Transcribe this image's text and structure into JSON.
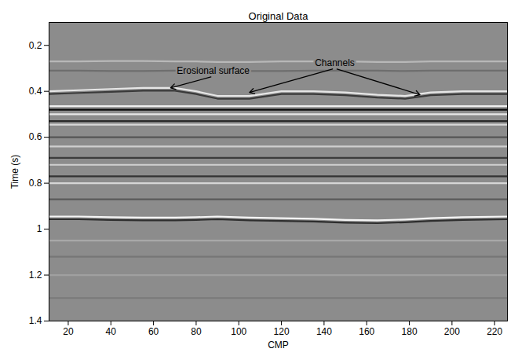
{
  "chart_data": {
    "type": "line",
    "title": "Original Data",
    "x_label": "CMP",
    "y_label": "Time (s)",
    "xlim": [
      11,
      226
    ],
    "ylim": [
      1.4,
      0.1
    ],
    "xticks": [
      20,
      40,
      60,
      80,
      100,
      120,
      140,
      160,
      180,
      200,
      220
    ],
    "yticks": [
      0.2,
      0.4,
      0.6,
      0.8,
      1,
      1.2,
      1.4
    ],
    "grid": false,
    "x": [
      11,
      25,
      40,
      55,
      70,
      80,
      90,
      105,
      120,
      135,
      150,
      165,
      178,
      190,
      205,
      226
    ],
    "series": [
      {
        "color": "#b8b8b8",
        "values": [
          0.27,
          0.27,
          0.268,
          0.268,
          0.27,
          0.27,
          0.272,
          0.272,
          0.27,
          0.27,
          0.27,
          0.272,
          0.272,
          0.27,
          0.27,
          0.27
        ]
      },
      {
        "color": "#6e6e6e",
        "values": [
          0.31,
          0.31,
          0.312,
          0.312,
          0.31,
          0.31,
          0.31,
          0.312,
          0.312,
          0.31,
          0.31,
          0.31,
          0.312,
          0.31,
          0.31,
          0.31
        ]
      },
      {
        "color": "#e6e6e6",
        "values": [
          0.4,
          0.395,
          0.39,
          0.385,
          0.385,
          0.4,
          0.42,
          0.42,
          0.4,
          0.4,
          0.405,
          0.415,
          0.42,
          0.405,
          0.4,
          0.4
        ]
      },
      {
        "color": "#3a3a3a",
        "values": [
          0.412,
          0.407,
          0.402,
          0.397,
          0.397,
          0.412,
          0.432,
          0.432,
          0.412,
          0.412,
          0.417,
          0.427,
          0.432,
          0.417,
          0.412,
          0.412
        ]
      },
      {
        "color": "#f0f0f0",
        "values": [
          0.465,
          0.465,
          0.465,
          0.465,
          0.465,
          0.465,
          0.465,
          0.465,
          0.465,
          0.465,
          0.465,
          0.465,
          0.465,
          0.465,
          0.465,
          0.465
        ]
      },
      {
        "color": "#0a0a0a",
        "values": [
          0.48,
          0.48,
          0.48,
          0.48,
          0.48,
          0.48,
          0.48,
          0.48,
          0.48,
          0.48,
          0.48,
          0.48,
          0.48,
          0.48,
          0.48,
          0.48
        ]
      },
      {
        "color": "#e8e8e8",
        "values": [
          0.5,
          0.5,
          0.5,
          0.5,
          0.5,
          0.5,
          0.5,
          0.5,
          0.5,
          0.5,
          0.5,
          0.5,
          0.5,
          0.5,
          0.5,
          0.5
        ]
      },
      {
        "color": "#2a2a2a",
        "values": [
          0.53,
          0.53,
          0.53,
          0.53,
          0.53,
          0.53,
          0.53,
          0.53,
          0.53,
          0.53,
          0.53,
          0.53,
          0.53,
          0.53,
          0.53,
          0.53
        ]
      },
      {
        "color": "#d8d8d8",
        "values": [
          0.545,
          0.545,
          0.545,
          0.545,
          0.545,
          0.545,
          0.545,
          0.545,
          0.545,
          0.545,
          0.545,
          0.545,
          0.545,
          0.545,
          0.545,
          0.545
        ]
      },
      {
        "color": "#555555",
        "values": [
          0.6,
          0.6,
          0.6,
          0.6,
          0.6,
          0.6,
          0.6,
          0.6,
          0.6,
          0.6,
          0.6,
          0.6,
          0.6,
          0.6,
          0.6,
          0.6
        ]
      },
      {
        "color": "#cfcfcf",
        "values": [
          0.64,
          0.64,
          0.64,
          0.64,
          0.64,
          0.64,
          0.64,
          0.64,
          0.64,
          0.64,
          0.64,
          0.64,
          0.64,
          0.64,
          0.64,
          0.64
        ]
      },
      {
        "color": "#3c3c3c",
        "values": [
          0.69,
          0.69,
          0.69,
          0.69,
          0.69,
          0.69,
          0.69,
          0.69,
          0.69,
          0.69,
          0.69,
          0.69,
          0.69,
          0.69,
          0.69,
          0.69
        ]
      },
      {
        "color": "#d0d0d0",
        "values": [
          0.72,
          0.72,
          0.72,
          0.72,
          0.72,
          0.72,
          0.72,
          0.72,
          0.72,
          0.72,
          0.72,
          0.72,
          0.72,
          0.72,
          0.72,
          0.72
        ]
      },
      {
        "color": "#333333",
        "values": [
          0.77,
          0.77,
          0.77,
          0.77,
          0.77,
          0.77,
          0.77,
          0.77,
          0.77,
          0.77,
          0.77,
          0.77,
          0.77,
          0.77,
          0.77,
          0.77
        ]
      },
      {
        "color": "#d6d6d6",
        "values": [
          0.8,
          0.8,
          0.8,
          0.8,
          0.8,
          0.8,
          0.8,
          0.8,
          0.8,
          0.8,
          0.8,
          0.8,
          0.8,
          0.8,
          0.8,
          0.8
        ]
      },
      {
        "color": "#5a5a5a",
        "values": [
          0.87,
          0.87,
          0.87,
          0.87,
          0.87,
          0.87,
          0.87,
          0.87,
          0.87,
          0.87,
          0.87,
          0.87,
          0.87,
          0.87,
          0.87,
          0.87
        ]
      },
      {
        "color": "#f5f5f5",
        "values": [
          0.945,
          0.945,
          0.948,
          0.95,
          0.95,
          0.948,
          0.945,
          0.95,
          0.952,
          0.955,
          0.96,
          0.962,
          0.958,
          0.952,
          0.948,
          0.945
        ]
      },
      {
        "color": "#2e2e2e",
        "values": [
          0.957,
          0.957,
          0.96,
          0.962,
          0.962,
          0.96,
          0.957,
          0.962,
          0.964,
          0.967,
          0.972,
          0.974,
          0.97,
          0.964,
          0.96,
          0.957
        ]
      },
      {
        "color": "#a8a8a8",
        "values": [
          1.05,
          1.05,
          1.05,
          1.05,
          1.05,
          1.05,
          1.05,
          1.05,
          1.05,
          1.05,
          1.05,
          1.05,
          1.05,
          1.05,
          1.05,
          1.05
        ]
      },
      {
        "color": "#777777",
        "values": [
          1.12,
          1.12,
          1.12,
          1.12,
          1.12,
          1.12,
          1.12,
          1.12,
          1.12,
          1.12,
          1.12,
          1.12,
          1.12,
          1.12,
          1.12,
          1.12
        ]
      },
      {
        "color": "#a0a0a0",
        "values": [
          1.2,
          1.2,
          1.2,
          1.2,
          1.2,
          1.2,
          1.2,
          1.2,
          1.2,
          1.2,
          1.2,
          1.2,
          1.2,
          1.2,
          1.2,
          1.2
        ]
      },
      {
        "color": "#7a7a7a",
        "values": [
          1.3,
          1.3,
          1.3,
          1.3,
          1.3,
          1.3,
          1.3,
          1.3,
          1.3,
          1.3,
          1.3,
          1.3,
          1.3,
          1.3,
          1.3,
          1.3
        ]
      }
    ],
    "annotations": [
      {
        "text": "Erosional surface",
        "x": 88,
        "y": 0.335,
        "arrows": [
          {
            "x": 68,
            "y": 0.385
          }
        ]
      },
      {
        "text": "Channels",
        "x": 145,
        "y": 0.3,
        "arrows": [
          {
            "x": 105,
            "y": 0.405
          },
          {
            "x": 185,
            "y": 0.415
          }
        ]
      }
    ]
  }
}
